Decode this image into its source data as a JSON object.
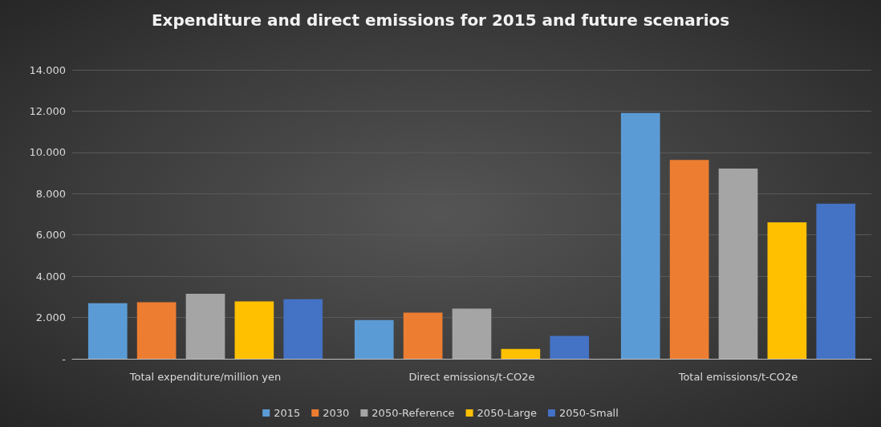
{
  "chart_data": {
    "type": "bar",
    "title": "Expenditure and direct emissions for 2015 and future scenarios",
    "categories": [
      "Total expenditure/million yen",
      "Direct emissions/t-CO2e",
      "Total emissions/t-CO2e"
    ],
    "series": [
      {
        "name": "2015",
        "color": "#5b9bd5",
        "values": [
          2690,
          1880,
          11910
        ]
      },
      {
        "name": "2030",
        "color": "#ed7d31",
        "values": [
          2740,
          2240,
          9630
        ]
      },
      {
        "name": "2050-Reference",
        "color": "#a5a5a5",
        "values": [
          3150,
          2430,
          9220
        ]
      },
      {
        "name": "2050-Large",
        "color": "#ffc000",
        "values": [
          2780,
          480,
          6610
        ]
      },
      {
        "name": "2050-Small",
        "color": "#4472c4",
        "values": [
          2890,
          1110,
          7520
        ]
      }
    ],
    "ylim": [
      0,
      14000
    ],
    "yticks": [
      {
        "value": 0,
        "label": "-"
      },
      {
        "value": 2000,
        "label": "2.000"
      },
      {
        "value": 4000,
        "label": "4.000"
      },
      {
        "value": 6000,
        "label": "6.000"
      },
      {
        "value": 8000,
        "label": "8.000"
      },
      {
        "value": 10000,
        "label": "10.000"
      },
      {
        "value": 12000,
        "label": "12.000"
      },
      {
        "value": 14000,
        "label": "14.000"
      }
    ],
    "grid": "y",
    "legend": "bottom"
  }
}
